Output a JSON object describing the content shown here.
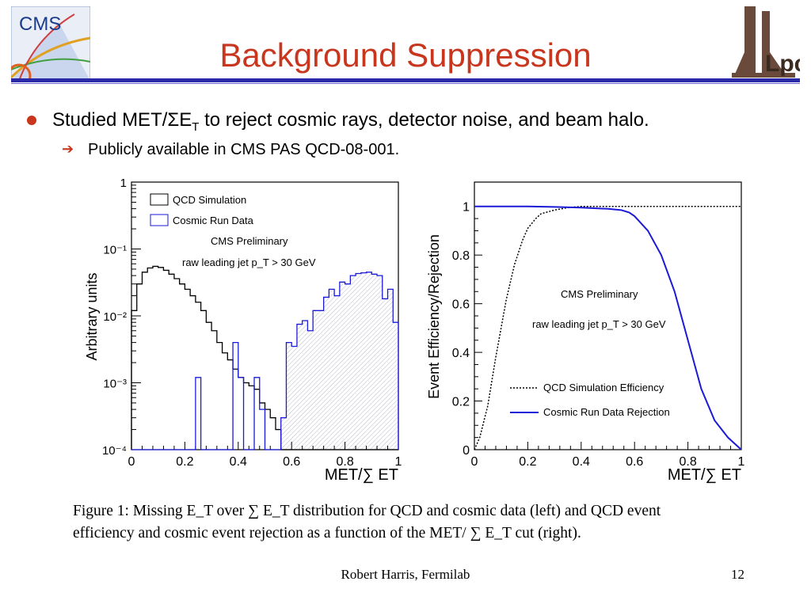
{
  "slide": {
    "title": "Background Suppression",
    "bullet_main_prefix": "Studied  MET/",
    "bullet_main_sigma": "Σ",
    "bullet_main_e": "E",
    "bullet_main_sub": "T",
    "bullet_main_suffix": " to reject cosmic rays, detector noise, and beam halo.",
    "bullet_sub": "Publicly available in CMS PAS QCD-08-001.",
    "caption_line1": "Figure 1:  Missing E_T over ∑ E_T distribution for QCD and cosmic data (left) and QCD event",
    "caption_line2": "efficiency and cosmic event rejection as a function of the MET/ ∑ E_T cut (right).",
    "footer_author": "Robert Harris, Fermilab",
    "page_number": "12",
    "logos": {
      "left": "CMS",
      "right": "Lpc"
    },
    "colors": {
      "title": "#c8361e",
      "rule": "#2a2aa8",
      "qcd": "#000000",
      "cosmic": "#1a1ad8"
    }
  },
  "chart_data": [
    {
      "type": "histogram",
      "ylabel": "Arbitrary units",
      "xlabel": "MET/∑ ET",
      "xlim": [
        0,
        1
      ],
      "ylim": [
        0.0001,
        1
      ],
      "yscale": "log",
      "x_ticks": [
        "0",
        "0.2",
        "0.4",
        "0.6",
        "0.8",
        "1"
      ],
      "y_ticks": [
        "10⁻⁴",
        "10⁻³",
        "10⁻²",
        "10⁻¹",
        "1"
      ],
      "legend": [
        "QCD Simulation",
        "Cosmic Run Data"
      ],
      "annotations": [
        "CMS Preliminary",
        "raw leading jet p_T > 30 GeV"
      ],
      "bin_edges": [
        0,
        0.02,
        0.04,
        0.06,
        0.08,
        0.1,
        0.12,
        0.14,
        0.16,
        0.18,
        0.2,
        0.22,
        0.24,
        0.26,
        0.28,
        0.3,
        0.32,
        0.34,
        0.36,
        0.38,
        0.4,
        0.42,
        0.44,
        0.46,
        0.48,
        0.5,
        0.52,
        0.54,
        0.56,
        0.58,
        0.6,
        0.62,
        0.64,
        0.66,
        0.68,
        0.7,
        0.72,
        0.74,
        0.76,
        0.78,
        0.8,
        0.82,
        0.84,
        0.86,
        0.88,
        0.9,
        0.92,
        0.94,
        0.96,
        0.98,
        1.0
      ],
      "series": [
        {
          "name": "QCD Simulation",
          "values": [
            0.012,
            0.03,
            0.045,
            0.052,
            0.055,
            0.053,
            0.048,
            0.042,
            0.036,
            0.03,
            0.025,
            0.02,
            0.016,
            0.012,
            0.008,
            0.006,
            0.004,
            0.0028,
            0.0022,
            0.0016,
            0.0012,
            0.001,
            0.0009,
            0.0008,
            0.0005,
            0.0004,
            0.0003,
            0.0002,
            0.0001,
            0.0001,
            0.0001,
            0.0001,
            0.0001,
            0.0001,
            0.0001,
            0.0001,
            0.0001,
            0.0001,
            0.0001,
            0.0001,
            0.0001,
            0.0001,
            0.0001,
            0.0001,
            0.0001,
            0.0001,
            0.0001,
            0.0001,
            0.0001,
            0.0001
          ]
        },
        {
          "name": "Cosmic Run Data",
          "values": [
            0.0001,
            0.0001,
            0.0001,
            0.0001,
            0.0001,
            0.0001,
            0.0001,
            0.0001,
            0.0001,
            0.0001,
            0.0001,
            0.0001,
            0.0012,
            0.0001,
            0.0001,
            0.0001,
            0.0001,
            0.0001,
            0.0001,
            0.004,
            0.0012,
            0.0001,
            0.0001,
            0.0012,
            0.0004,
            0.0001,
            0.0001,
            0.0001,
            0.0003,
            0.004,
            0.0035,
            0.0075,
            0.0085,
            0.006,
            0.012,
            0.012,
            0.019,
            0.025,
            0.02,
            0.032,
            0.03,
            0.04,
            0.043,
            0.044,
            0.045,
            0.042,
            0.04,
            0.018,
            0.025,
            0.008
          ]
        }
      ]
    },
    {
      "type": "line",
      "ylabel": "Event Efficiency/Rejection",
      "xlabel": "MET/∑ ET",
      "xlim": [
        0,
        1
      ],
      "ylim": [
        0,
        1.1
      ],
      "x_ticks": [
        "0",
        "0.2",
        "0.4",
        "0.6",
        "0.8",
        "1"
      ],
      "y_ticks": [
        "0",
        "0.2",
        "0.4",
        "0.6",
        "0.8",
        "1"
      ],
      "legend": [
        "QCD Simulation Efficiency",
        "Cosmic Run Data Rejection"
      ],
      "annotations": [
        "CMS Preliminary",
        "raw leading jet p_T > 30 GeV"
      ],
      "series": [
        {
          "name": "QCD Simulation Efficiency",
          "style": "dotted",
          "x": [
            0,
            0.02,
            0.05,
            0.08,
            0.1,
            0.12,
            0.15,
            0.18,
            0.2,
            0.23,
            0.25,
            0.3,
            0.35,
            0.4,
            0.5,
            0.6,
            0.8,
            1.0
          ],
          "y": [
            0,
            0.05,
            0.18,
            0.38,
            0.5,
            0.62,
            0.76,
            0.86,
            0.91,
            0.95,
            0.97,
            0.985,
            0.995,
            1.0,
            1.0,
            1.0,
            1.0,
            1.0
          ]
        },
        {
          "name": "Cosmic Run Data Rejection",
          "style": "solid",
          "x": [
            0,
            0.1,
            0.2,
            0.3,
            0.4,
            0.5,
            0.55,
            0.58,
            0.6,
            0.65,
            0.7,
            0.75,
            0.8,
            0.85,
            0.9,
            0.95,
            1.0
          ],
          "y": [
            1.0,
            1.0,
            1.0,
            0.998,
            0.995,
            0.99,
            0.985,
            0.975,
            0.96,
            0.9,
            0.8,
            0.65,
            0.45,
            0.25,
            0.12,
            0.05,
            0.0
          ]
        }
      ]
    }
  ]
}
